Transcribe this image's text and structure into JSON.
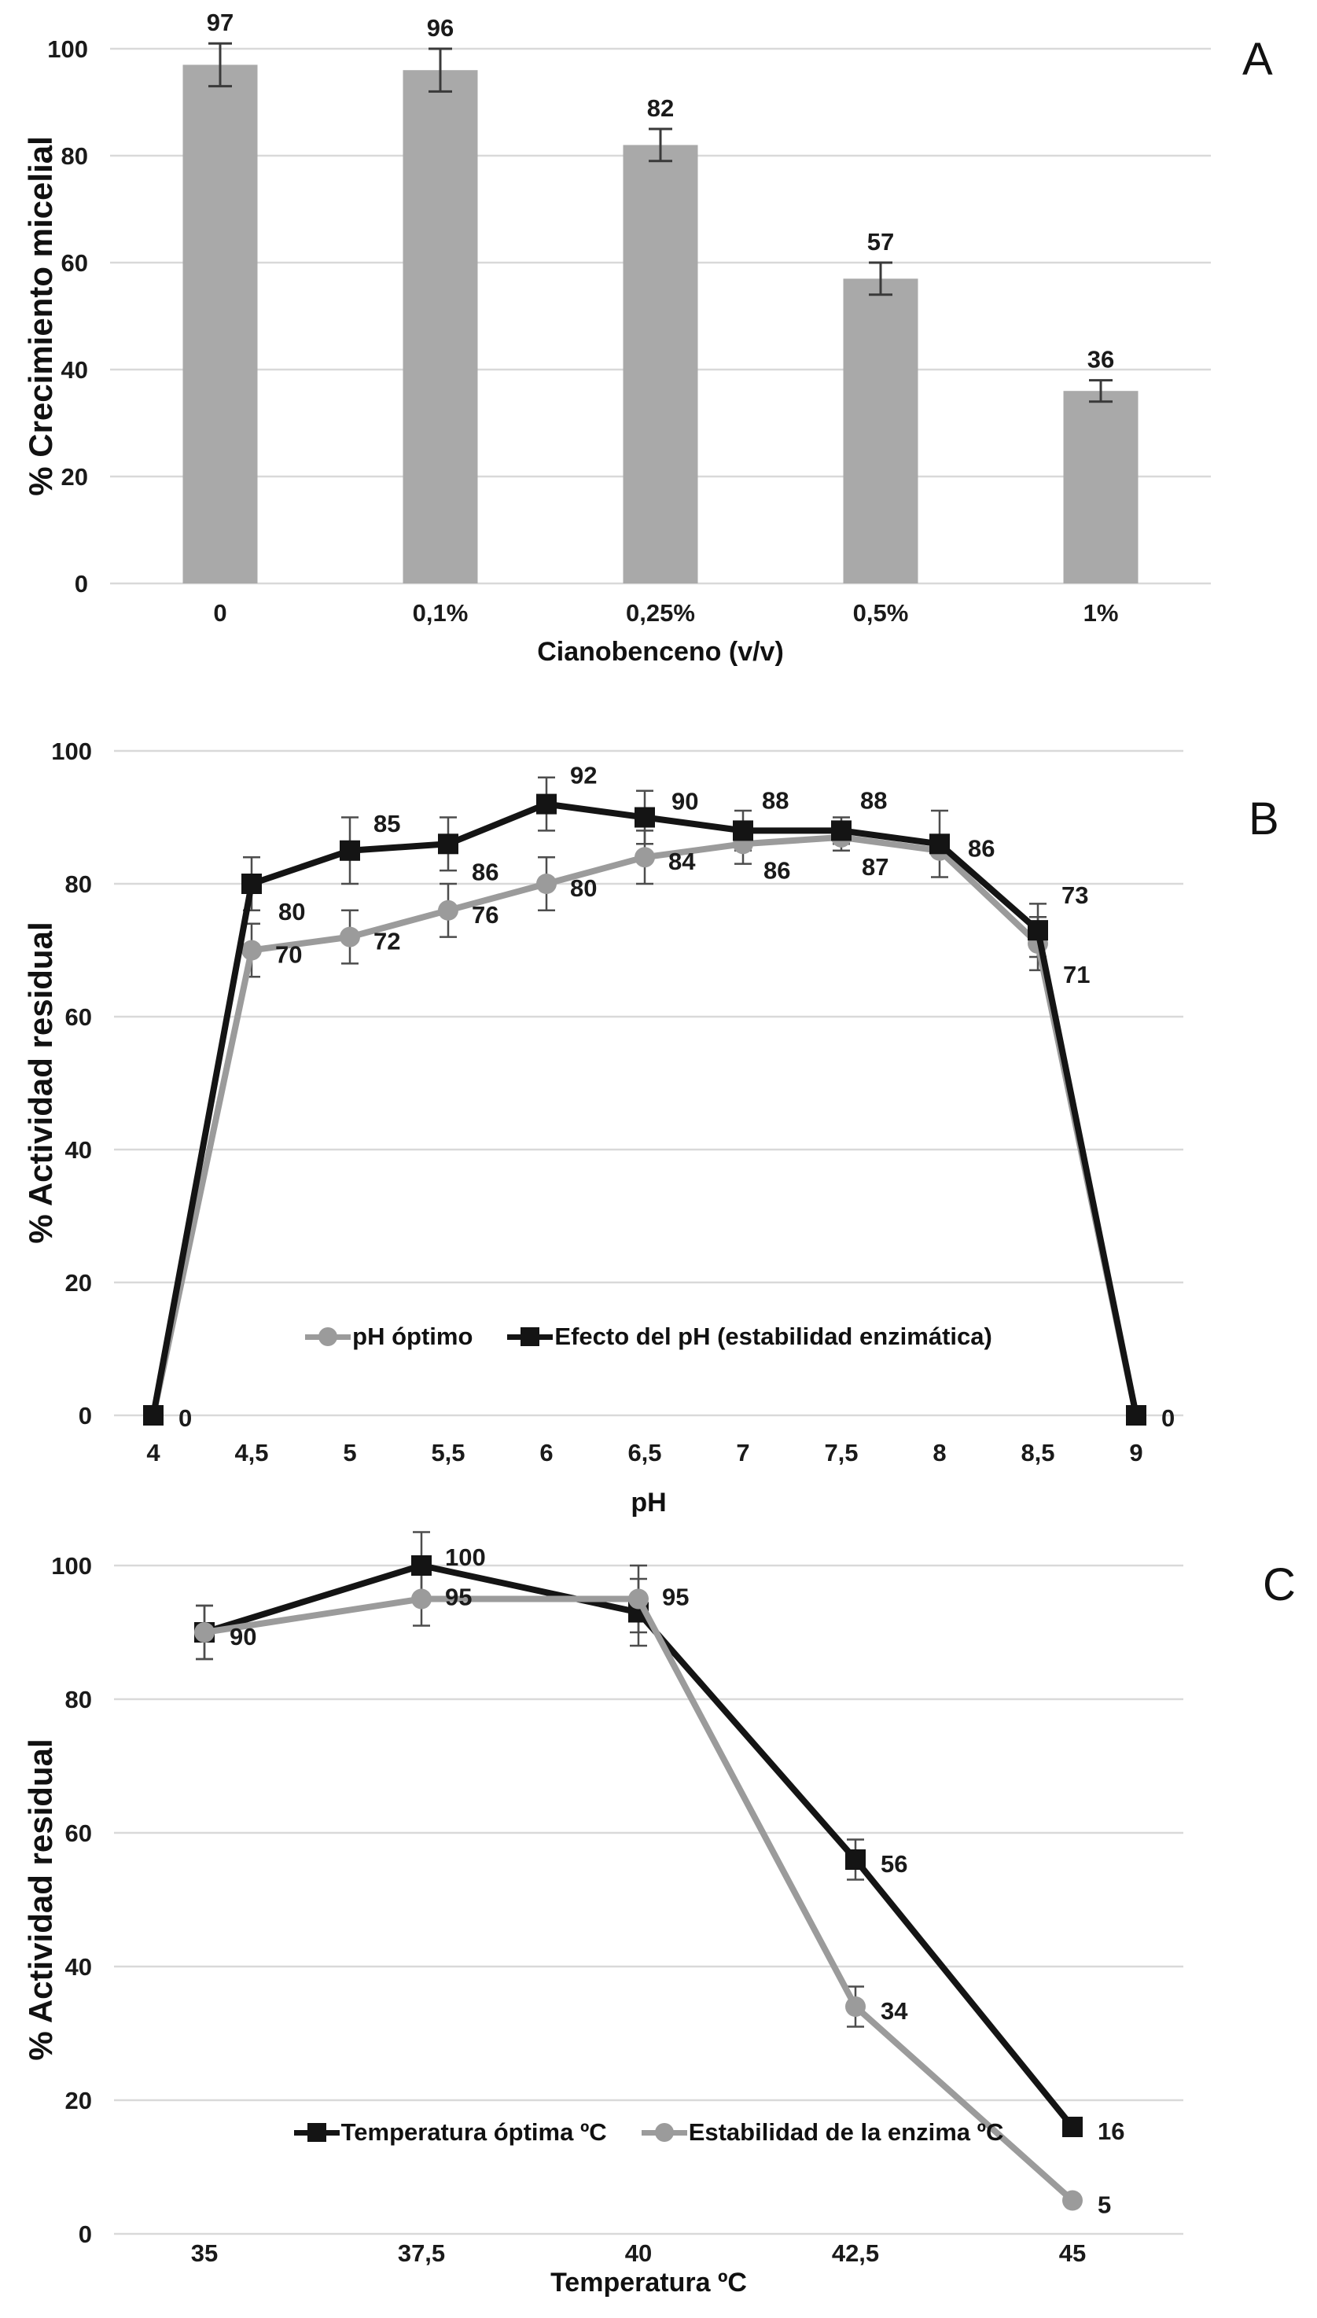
{
  "figure": {
    "background": "#ffffff",
    "grid_color": "#d9d9d9",
    "error_bar_color": "#3a3a3a"
  },
  "chart_data": [
    {
      "panel_letter": "A",
      "type": "bar",
      "title": "",
      "ylabel": "% Crecimiento micelial",
      "xlabel": "Cianobenceno (v/v)",
      "categories": [
        "0",
        "0,1%",
        "0,25%",
        "0,5%",
        "1%"
      ],
      "values": [
        97,
        96,
        82,
        57,
        36
      ],
      "errors": [
        4,
        4,
        3,
        3,
        2
      ],
      "labels": [
        "97",
        "96",
        "82",
        "57",
        "36"
      ],
      "ylim": [
        0,
        100
      ],
      "yticks": [
        0,
        20,
        40,
        60,
        80,
        100
      ],
      "grid": true,
      "bar_color": "#a9a9a9",
      "legend_position": "none"
    },
    {
      "panel_letter": "B",
      "type": "line",
      "title": "",
      "ylabel": "% Actividad residual",
      "xlabel": "pH",
      "categories": [
        "4",
        "4,5",
        "5",
        "5,5",
        "6",
        "6,5",
        "7",
        "7,5",
        "8",
        "8,5",
        "9"
      ],
      "ylim": [
        0,
        100
      ],
      "yticks": [
        0,
        20,
        40,
        60,
        80,
        100
      ],
      "grid": true,
      "legend_position": "inside-bottom",
      "series": [
        {
          "name": "pH óptimo",
          "color": "#9b9b9b",
          "marker": "circle",
          "values": [
            0,
            70,
            72,
            76,
            80,
            84,
            86,
            87,
            85,
            71,
            0
          ],
          "errors": [
            0,
            4,
            4,
            4,
            4,
            4,
            3,
            2,
            0,
            4,
            0
          ],
          "labels": [
            "",
            "70",
            "72",
            "76",
            "80",
            "84",
            "86",
            "87",
            "",
            "71",
            ""
          ],
          "label_offsets": [
            [
              0,
              0
            ],
            [
              30,
              16
            ],
            [
              30,
              16
            ],
            [
              30,
              16
            ],
            [
              30,
              16
            ],
            [
              30,
              16
            ],
            [
              26,
              44
            ],
            [
              26,
              48
            ],
            [
              0,
              0
            ],
            [
              32,
              50
            ],
            [
              0,
              0
            ]
          ]
        },
        {
          "name": "Efecto del pH (estabilidad enzimática)",
          "color": "#141414",
          "marker": "square",
          "values": [
            0,
            80,
            85,
            86,
            92,
            90,
            88,
            88,
            86,
            73,
            0
          ],
          "errors": [
            0,
            4,
            5,
            4,
            4,
            4,
            3,
            2,
            5,
            4,
            0
          ],
          "labels": [
            "0",
            "80",
            "85",
            "86",
            "92",
            "90",
            "88",
            "88",
            "86",
            "73",
            "0"
          ],
          "label_offsets": [
            [
              32,
              14
            ],
            [
              34,
              46
            ],
            [
              30,
              -24
            ],
            [
              30,
              46
            ],
            [
              30,
              -26
            ],
            [
              34,
              -10
            ],
            [
              24,
              -28
            ],
            [
              24,
              -28
            ],
            [
              36,
              16
            ],
            [
              30,
              -34
            ],
            [
              32,
              14
            ]
          ]
        }
      ]
    },
    {
      "panel_letter": "C",
      "type": "line",
      "title": "",
      "ylabel": "% Actividad residual",
      "xlabel": "Temperatura ºC",
      "categories": [
        "35",
        "37,5",
        "40",
        "42,5",
        "45"
      ],
      "ylim": [
        0,
        100
      ],
      "yticks": [
        0,
        20,
        40,
        60,
        80,
        100
      ],
      "grid": true,
      "legend_position": "inside-bottom",
      "series": [
        {
          "name": "Temperatura óptima ºC",
          "color": "#141414",
          "marker": "square",
          "values": [
            90,
            100,
            93,
            56,
            16
          ],
          "errors": [
            4,
            5,
            5,
            3,
            0
          ],
          "labels": [
            "",
            "100",
            "",
            "56",
            "16"
          ],
          "label_offsets": [
            [
              0,
              0
            ],
            [
              30,
              0
            ],
            [
              0,
              0
            ],
            [
              32,
              16
            ],
            [
              32,
              16
            ]
          ]
        },
        {
          "name": "Estabilidad de la enzima ºC",
          "color": "#9b9b9b",
          "marker": "circle",
          "values": [
            90,
            95,
            95,
            34,
            5
          ],
          "errors": [
            4,
            4,
            5,
            3,
            0
          ],
          "labels": [
            "90",
            "95",
            "95",
            "34",
            "5"
          ],
          "label_offsets": [
            [
              32,
              16
            ],
            [
              30,
              8
            ],
            [
              30,
              8
            ],
            [
              32,
              16
            ],
            [
              32,
              16
            ]
          ]
        }
      ]
    }
  ]
}
